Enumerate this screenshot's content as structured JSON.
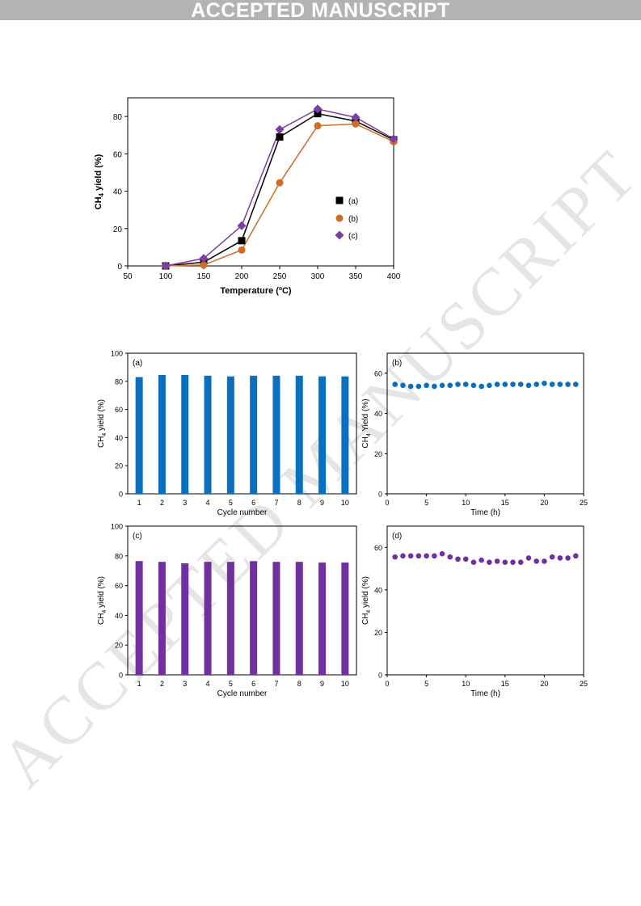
{
  "header": {
    "banner_text": "ACCEPTED MANUSCRIPT",
    "watermark_text": "ACCEPTED MANUSCRIPT"
  },
  "chart_data": [
    {
      "type": "line",
      "id": "temperature",
      "ylabel_main": "CH",
      "ylabel_sub": "4",
      "ylabel_rest": " yield (%)",
      "xlabel": "Temperature (ºC)",
      "xlim": [
        50,
        400
      ],
      "ylim": [
        0,
        90
      ],
      "xticks": [
        50,
        100,
        150,
        200,
        250,
        300,
        350,
        400
      ],
      "yticks": [
        0,
        20,
        40,
        60,
        80
      ],
      "x": [
        100,
        150,
        200,
        250,
        300,
        350,
        400
      ],
      "series": [
        {
          "name": "(a)",
          "marker": "square",
          "color": "#000000",
          "values": [
            0,
            2,
            13.5,
            69,
            81.5,
            77.5,
            67.5
          ]
        },
        {
          "name": "(b)",
          "marker": "circle",
          "color": "#d06c25",
          "values": [
            0,
            0.5,
            8.5,
            44.5,
            75,
            76,
            66.5
          ]
        },
        {
          "name": "(c)",
          "marker": "diamond",
          "color": "#7a3fa0",
          "values": [
            0,
            4,
            21.5,
            73,
            84,
            79.5,
            68
          ]
        }
      ],
      "legend_position": "right-center"
    },
    {
      "type": "bar",
      "id": "panel-a",
      "panel_label": "(a)",
      "ylabel_main": "CH",
      "ylabel_sub": "4",
      "ylabel_rest": " yield (%)",
      "xlabel": "Cycle number",
      "ylim": [
        0,
        100
      ],
      "yticks": [
        0,
        20,
        40,
        60,
        80,
        100
      ],
      "categories": [
        "1",
        "2",
        "3",
        "4",
        "5",
        "6",
        "7",
        "8",
        "9",
        "10"
      ],
      "values": [
        83,
        84.5,
        84.5,
        84,
        83.5,
        84,
        84,
        84,
        83.5,
        83.5
      ],
      "color": "#0a70be"
    },
    {
      "type": "scatter",
      "id": "panel-b",
      "panel_label": "(b)",
      "ylabel_main": "CH",
      "ylabel_sub": "4",
      "ylabel_rest": " Yield (%)",
      "xlabel": "Time (h)",
      "xlim": [
        0,
        25
      ],
      "ylim": [
        0,
        70
      ],
      "xticks": [
        0,
        5,
        10,
        15,
        20,
        25
      ],
      "yticks": [
        0,
        20,
        40,
        60
      ],
      "x": [
        1,
        2,
        3,
        4,
        5,
        6,
        7,
        8,
        9,
        10,
        11,
        12,
        13,
        14,
        15,
        16,
        17,
        18,
        19,
        20,
        21,
        22,
        23,
        24
      ],
      "values": [
        54.5,
        54,
        53.5,
        53.5,
        54,
        53.5,
        54,
        54,
        54.5,
        54.5,
        54,
        53.5,
        54,
        54.5,
        54.5,
        54.5,
        54.5,
        54,
        54.5,
        55,
        54.5,
        54.5,
        54.5,
        54.5
      ],
      "color": "#0a70be"
    },
    {
      "type": "bar",
      "id": "panel-c",
      "panel_label": "(c)",
      "ylabel_main": "CH",
      "ylabel_sub": "4",
      "ylabel_rest": " yield (%)",
      "xlabel": "Cycle number",
      "ylim": [
        0,
        100
      ],
      "yticks": [
        0,
        20,
        40,
        60,
        80,
        100
      ],
      "categories": [
        "1",
        "2",
        "3",
        "4",
        "5",
        "6",
        "7",
        "8",
        "9",
        "10"
      ],
      "values": [
        76.5,
        76,
        75,
        76,
        76,
        76.5,
        76,
        76,
        75.5,
        75.5
      ],
      "color": "#7030a0"
    },
    {
      "type": "scatter",
      "id": "panel-d",
      "panel_label": "(d)",
      "ylabel_main": "CH",
      "ylabel_sub": "4",
      "ylabel_rest": " yield (%)",
      "xlabel": "Time (h)",
      "xlim": [
        0,
        25
      ],
      "ylim": [
        0,
        70
      ],
      "xticks": [
        0,
        5,
        10,
        15,
        20,
        25
      ],
      "yticks": [
        0,
        20,
        40,
        60
      ],
      "x": [
        1,
        2,
        3,
        4,
        5,
        6,
        7,
        8,
        9,
        10,
        11,
        12,
        13,
        14,
        15,
        16,
        17,
        18,
        19,
        20,
        21,
        22,
        23,
        24
      ],
      "values": [
        55.5,
        56,
        56,
        56,
        56,
        56,
        57,
        55.5,
        54.5,
        54.5,
        53,
        54,
        53,
        53.5,
        53,
        53,
        53,
        55,
        53.5,
        53.5,
        55.5,
        55,
        55,
        56
      ],
      "color": "#7030a0"
    }
  ]
}
